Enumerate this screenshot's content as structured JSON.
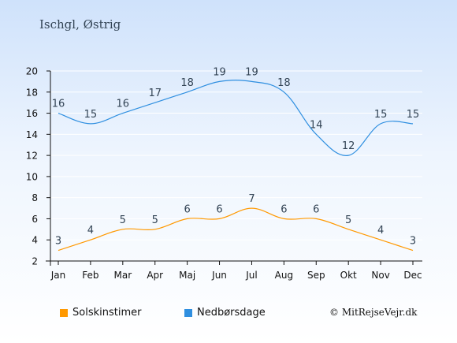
{
  "title": "Ischgl, Østrig",
  "copyright": "© MitRejseVejr.dk",
  "colors": {
    "sun": "#ff9900",
    "rain": "#2f8fe0",
    "grid": "#ffffff",
    "axis": "#111111",
    "label": "#334455"
  },
  "chart_data": {
    "type": "line",
    "categories": [
      "Jan",
      "Feb",
      "Mar",
      "Apr",
      "Maj",
      "Jun",
      "Jul",
      "Aug",
      "Sep",
      "Okt",
      "Nov",
      "Dec"
    ],
    "series": [
      {
        "name": "Solskinstimer",
        "values": [
          3,
          4,
          5,
          5,
          6,
          6,
          7,
          6,
          6,
          5,
          4,
          3
        ]
      },
      {
        "name": "Nedbørsdage",
        "values": [
          16,
          15,
          16,
          17,
          18,
          19,
          19,
          18,
          14,
          12,
          15,
          15
        ]
      }
    ],
    "yticks": [
      2,
      4,
      6,
      8,
      10,
      12,
      14,
      16,
      18,
      20
    ],
    "ylim": [
      2,
      20
    ],
    "grid": true,
    "legend_position": "bottom"
  }
}
